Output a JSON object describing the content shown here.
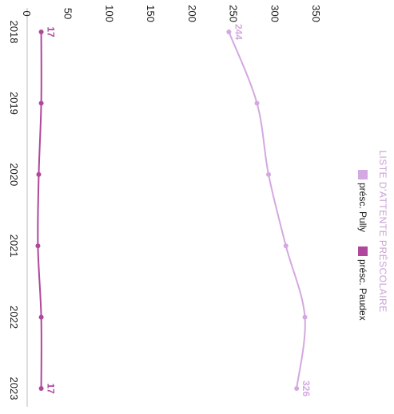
{
  "chart_data": {
    "type": "line",
    "title": "LISTE D'ATTENTE PRÉSCOLAIRE",
    "orientation": "rotated-90-clockwise",
    "categories": [
      "2018",
      "2019",
      "2020",
      "2021",
      "2022",
      "2023"
    ],
    "y_ticks": [
      0,
      50,
      100,
      150,
      200,
      250,
      300,
      350
    ],
    "ylim": [
      0,
      350
    ],
    "grid": false,
    "legend_position": "top",
    "series": [
      {
        "name": "présc. Pully",
        "color": "#d4a8e0",
        "values": [
          244,
          278,
          292,
          313,
          336,
          326
        ],
        "data_labels": [
          {
            "index": 0,
            "text": "244"
          },
          {
            "index": 5,
            "text": "326"
          }
        ]
      },
      {
        "name": "présc. Paudex",
        "color": "#b0479c",
        "values": [
          17,
          17,
          14,
          13,
          17,
          17
        ],
        "data_labels": [
          {
            "index": 0,
            "text": "17"
          },
          {
            "index": 5,
            "text": "17"
          }
        ]
      }
    ]
  }
}
